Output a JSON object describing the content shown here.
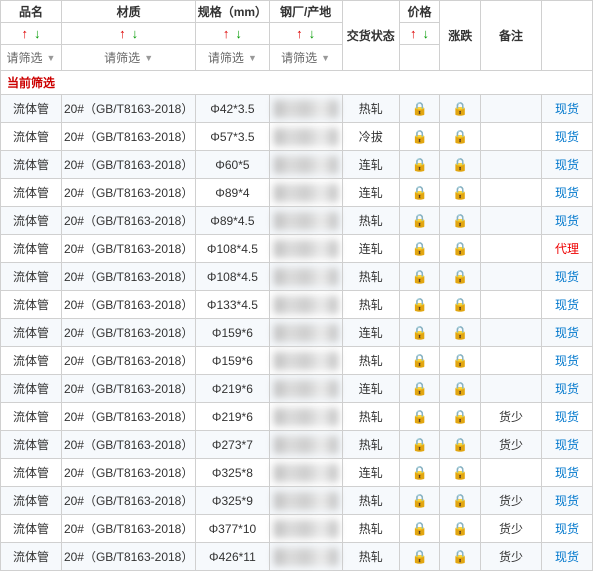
{
  "colors": {
    "up": "#d00",
    "down": "#090",
    "lock": "#e33",
    "link": "#07c",
    "agent": "#e00",
    "border": "#d0d0d0",
    "altRow": "#f6f9fc"
  },
  "header": {
    "name": "品名",
    "material": "材质",
    "spec": "规格（mm）",
    "factory": "钢厂/产地",
    "status": "交货状态",
    "price": "价格",
    "change": "涨跌",
    "note": "备注",
    "remark": ""
  },
  "filter_placeholder": "请筛选",
  "current_filter_label": "当前筛选",
  "columns_with_sort": [
    "name",
    "material",
    "spec",
    "factory",
    "price"
  ],
  "columns_with_filter": [
    "name",
    "material",
    "spec",
    "factory"
  ],
  "lock_icon": "🔒",
  "rows": [
    {
      "name": "流体管",
      "material": "20#（GB/T8163-2018）",
      "spec": "Φ42*3.5",
      "status": "热轧",
      "note": "",
      "remark": "现货",
      "remark_type": "stock"
    },
    {
      "name": "流体管",
      "material": "20#（GB/T8163-2018）",
      "spec": "Φ57*3.5",
      "status": "冷拔",
      "note": "",
      "remark": "现货",
      "remark_type": "stock"
    },
    {
      "name": "流体管",
      "material": "20#（GB/T8163-2018）",
      "spec": "Φ60*5",
      "status": "连轧",
      "note": "",
      "remark": "现货",
      "remark_type": "stock"
    },
    {
      "name": "流体管",
      "material": "20#（GB/T8163-2018）",
      "spec": "Φ89*4",
      "status": "连轧",
      "note": "",
      "remark": "现货",
      "remark_type": "stock"
    },
    {
      "name": "流体管",
      "material": "20#（GB/T8163-2018）",
      "spec": "Φ89*4.5",
      "status": "热轧",
      "note": "",
      "remark": "现货",
      "remark_type": "stock"
    },
    {
      "name": "流体管",
      "material": "20#（GB/T8163-2018）",
      "spec": "Φ108*4.5",
      "status": "连轧",
      "note": "",
      "remark": "代理",
      "remark_type": "agent"
    },
    {
      "name": "流体管",
      "material": "20#（GB/T8163-2018）",
      "spec": "Φ108*4.5",
      "status": "热轧",
      "note": "",
      "remark": "现货",
      "remark_type": "stock"
    },
    {
      "name": "流体管",
      "material": "20#（GB/T8163-2018）",
      "spec": "Φ133*4.5",
      "status": "热轧",
      "note": "",
      "remark": "现货",
      "remark_type": "stock"
    },
    {
      "name": "流体管",
      "material": "20#（GB/T8163-2018）",
      "spec": "Φ159*6",
      "status": "连轧",
      "note": "",
      "remark": "现货",
      "remark_type": "stock"
    },
    {
      "name": "流体管",
      "material": "20#（GB/T8163-2018）",
      "spec": "Φ159*6",
      "status": "热轧",
      "note": "",
      "remark": "现货",
      "remark_type": "stock"
    },
    {
      "name": "流体管",
      "material": "20#（GB/T8163-2018）",
      "spec": "Φ219*6",
      "status": "连轧",
      "note": "",
      "remark": "现货",
      "remark_type": "stock"
    },
    {
      "name": "流体管",
      "material": "20#（GB/T8163-2018）",
      "spec": "Φ219*6",
      "status": "热轧",
      "note": "货少",
      "remark": "现货",
      "remark_type": "stock"
    },
    {
      "name": "流体管",
      "material": "20#（GB/T8163-2018）",
      "spec": "Φ273*7",
      "status": "热轧",
      "note": "货少",
      "remark": "现货",
      "remark_type": "stock"
    },
    {
      "name": "流体管",
      "material": "20#（GB/T8163-2018）",
      "spec": "Φ325*8",
      "status": "连轧",
      "note": "",
      "remark": "现货",
      "remark_type": "stock"
    },
    {
      "name": "流体管",
      "material": "20#（GB/T8163-2018）",
      "spec": "Φ325*9",
      "status": "热轧",
      "note": "货少",
      "remark": "现货",
      "remark_type": "stock"
    },
    {
      "name": "流体管",
      "material": "20#（GB/T8163-2018）",
      "spec": "Φ377*10",
      "status": "热轧",
      "note": "货少",
      "remark": "现货",
      "remark_type": "stock"
    },
    {
      "name": "流体管",
      "material": "20#（GB/T8163-2018）",
      "spec": "Φ426*11",
      "status": "热轧",
      "note": "货少",
      "remark": "现货",
      "remark_type": "stock"
    }
  ]
}
